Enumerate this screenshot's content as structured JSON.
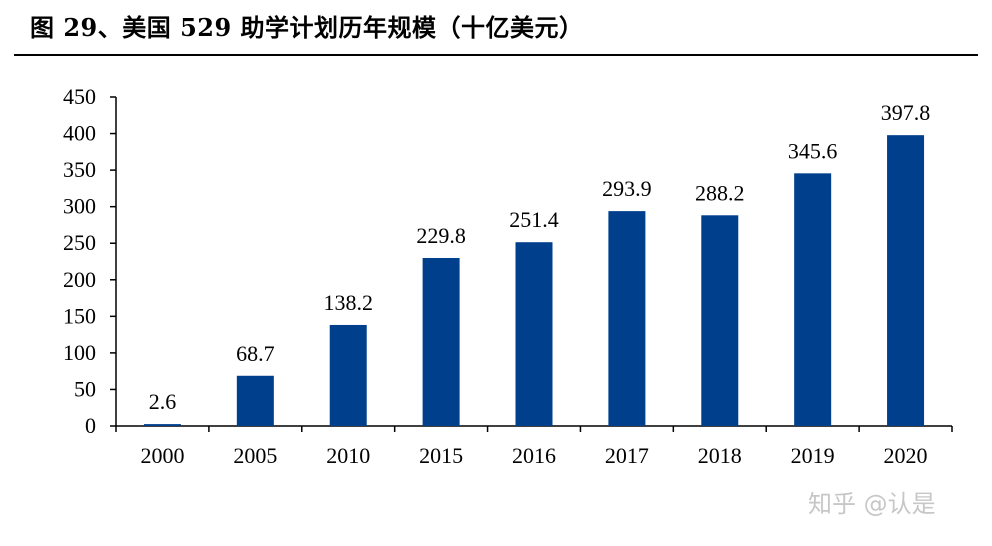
{
  "title": "图 29、美国 529 助学计划历年规模（十亿美元）",
  "watermark": "知乎 @认是",
  "colors": {
    "bar": "#003F8C",
    "axis": "#000000"
  },
  "chart_data": {
    "type": "bar",
    "title": "图 29、美国 529 助学计划历年规模（十亿美元）",
    "categories": [
      "2000",
      "2005",
      "2010",
      "2015",
      "2016",
      "2017",
      "2018",
      "2019",
      "2020"
    ],
    "values": [
      2.6,
      68.7,
      138.2,
      229.8,
      251.4,
      293.9,
      288.2,
      345.6,
      397.8
    ],
    "value_labels": [
      "2.6",
      "68.7",
      "138.2",
      "229.8",
      "251.4",
      "293.9",
      "288.2",
      "345.6",
      "397.8"
    ],
    "ylim": [
      0,
      450
    ],
    "yticks": [
      "0",
      "50",
      "100",
      "150",
      "200",
      "250",
      "300",
      "350",
      "400",
      "450"
    ],
    "grid": false,
    "legend": "none"
  }
}
